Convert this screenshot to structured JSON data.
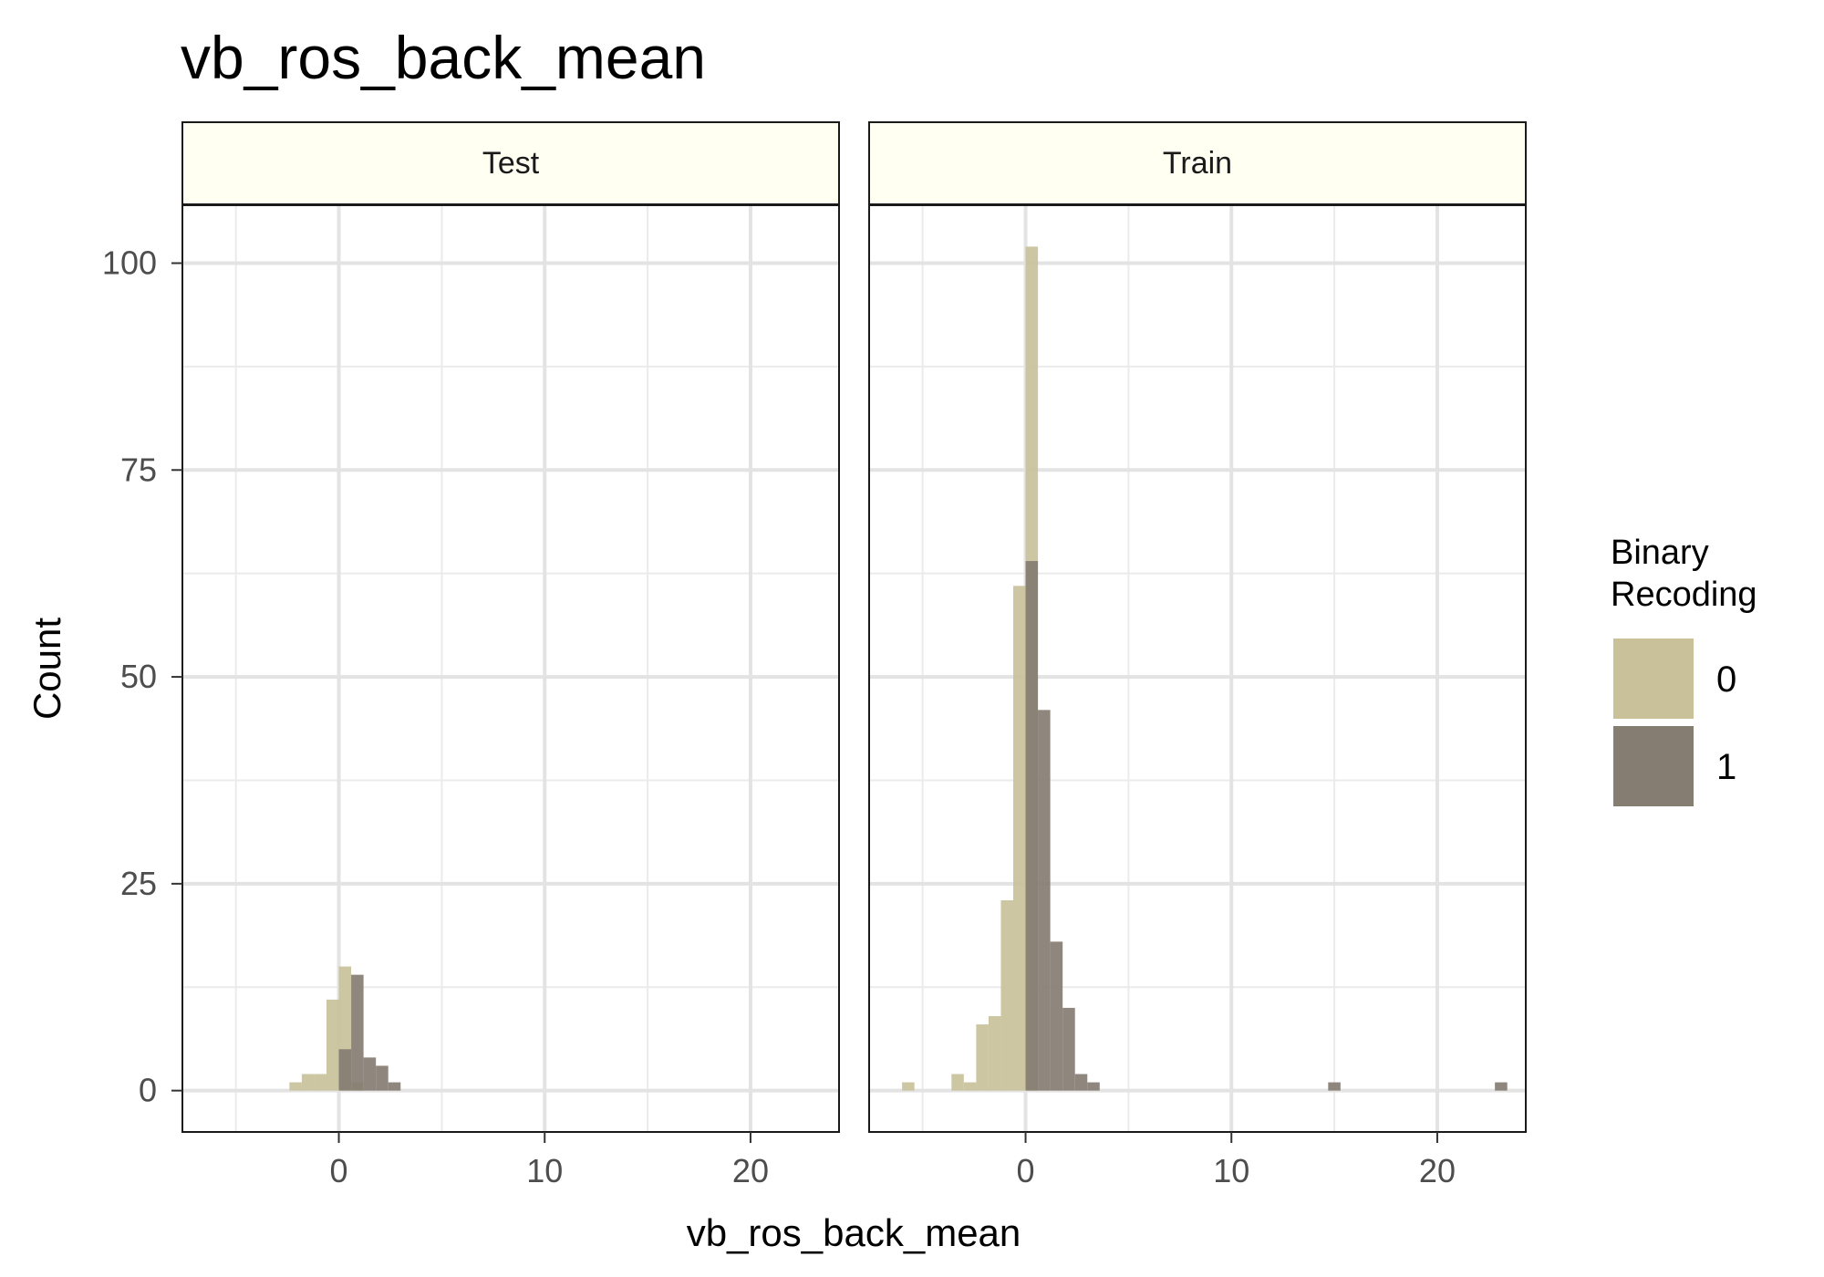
{
  "chart_data": {
    "type": "bar",
    "subtype": "faceted overlapping histogram",
    "title": "vb_ros_back_mean",
    "xlabel": "vb_ros_back_mean",
    "ylabel": "Count",
    "xlim": [
      -7.6,
      24.3
    ],
    "ylim": [
      -5,
      107
    ],
    "x_ticks": [
      0,
      10,
      20
    ],
    "x_tick_labels": [
      "0",
      "10",
      "20"
    ],
    "y_ticks": [
      0,
      25,
      50,
      75,
      100
    ],
    "y_tick_labels": [
      "0",
      "25",
      "50",
      "75",
      "100"
    ],
    "grid": true,
    "bin_width": 0.6,
    "legend": {
      "title_lines": [
        "Binary",
        "Recoding"
      ],
      "placement": "right",
      "entries": [
        {
          "label": "0",
          "color": "#c9c19a"
        },
        {
          "label": "1",
          "color": "#857c72"
        }
      ]
    },
    "facets": [
      {
        "label": "Test",
        "series": [
          {
            "name": "0",
            "bins": [
              [
                -2.4,
                1
              ],
              [
                -1.8,
                2
              ],
              [
                -1.2,
                2
              ],
              [
                -0.6,
                11
              ],
              [
                0,
                15
              ],
              [
                0.6,
                1
              ]
            ]
          },
          {
            "name": "1",
            "bins": [
              [
                0,
                5
              ],
              [
                0.6,
                14
              ],
              [
                1.2,
                4
              ],
              [
                1.8,
                3
              ],
              [
                2.4,
                1
              ]
            ]
          }
        ]
      },
      {
        "label": "Train",
        "series": [
          {
            "name": "0",
            "bins": [
              [
                -6,
                1
              ],
              [
                -3.6,
                2
              ],
              [
                -3,
                1
              ],
              [
                -2.4,
                8
              ],
              [
                -1.8,
                9
              ],
              [
                -1.2,
                23
              ],
              [
                -0.6,
                61
              ],
              [
                0,
                102
              ]
            ]
          },
          {
            "name": "1",
            "bins": [
              [
                0,
                64
              ],
              [
                0.6,
                46
              ],
              [
                1.2,
                18
              ],
              [
                1.8,
                10
              ],
              [
                2.4,
                2
              ],
              [
                3,
                1
              ],
              [
                14.7,
                1
              ],
              [
                22.8,
                1
              ]
            ]
          }
        ]
      }
    ]
  }
}
